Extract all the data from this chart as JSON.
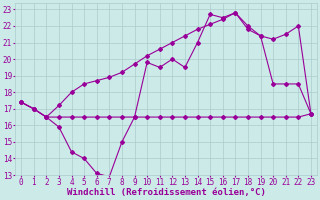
{
  "xlabel": "Windchill (Refroidissement éolien,°C)",
  "xlim": [
    -0.5,
    23.5
  ],
  "ylim": [
    13,
    23.4
  ],
  "yticks": [
    13,
    14,
    15,
    16,
    17,
    18,
    19,
    20,
    21,
    22,
    23
  ],
  "xticks": [
    0,
    1,
    2,
    3,
    4,
    5,
    6,
    7,
    8,
    9,
    10,
    11,
    12,
    13,
    14,
    15,
    16,
    17,
    18,
    19,
    20,
    21,
    22,
    23
  ],
  "background_color": "#cceae7",
  "grid_color": "#aacccc",
  "line_color": "#990099",
  "line1_x": [
    0,
    1,
    2,
    3,
    4,
    5,
    6,
    7,
    8,
    9,
    10,
    11,
    12,
    13,
    14,
    15,
    16,
    17,
    18,
    19,
    20,
    21,
    22,
    23
  ],
  "line1_y": [
    17.4,
    17.0,
    16.5,
    16.5,
    16.5,
    16.5,
    16.5,
    16.5,
    16.5,
    16.5,
    16.5,
    16.5,
    16.5,
    16.5,
    16.5,
    16.5,
    16.5,
    16.5,
    16.5,
    16.5,
    16.5,
    16.5,
    16.5,
    16.7
  ],
  "line2_x": [
    0,
    1,
    2,
    3,
    4,
    5,
    6,
    7,
    8,
    9,
    10,
    11,
    12,
    13,
    14,
    15,
    16,
    17,
    18,
    19,
    20,
    21,
    22,
    23
  ],
  "line2_y": [
    17.4,
    17.0,
    16.5,
    15.9,
    14.4,
    14.0,
    13.1,
    12.9,
    15.0,
    16.5,
    19.8,
    19.5,
    20.0,
    19.5,
    21.0,
    22.7,
    22.5,
    22.8,
    22.0,
    21.4,
    18.5,
    18.5,
    18.5,
    16.7
  ],
  "line3_x": [
    0,
    1,
    2,
    3,
    4,
    5,
    6,
    7,
    8,
    9,
    10,
    11,
    12,
    13,
    14,
    15,
    16,
    17,
    18,
    19,
    20,
    21,
    22,
    23
  ],
  "line3_y": [
    17.4,
    17.0,
    16.5,
    17.2,
    18.0,
    18.5,
    18.7,
    18.9,
    19.2,
    19.7,
    20.2,
    20.6,
    21.0,
    21.4,
    21.8,
    22.1,
    22.4,
    22.8,
    21.8,
    21.4,
    21.2,
    21.5,
    22.0,
    16.7
  ],
  "marker": "D",
  "markersize": 2.0,
  "linewidth": 0.8,
  "tick_fontsize": 5.5,
  "xlabel_fontsize": 6.5
}
